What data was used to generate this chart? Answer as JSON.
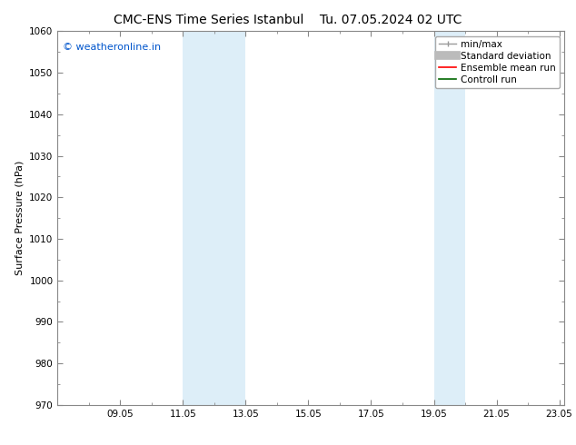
{
  "title_left": "CMC-ENS Time Series Istanbul",
  "title_right": "Tu. 07.05.2024 02 UTC",
  "ylabel": "Surface Pressure (hPa)",
  "xlim": [
    7.0,
    23.167
  ],
  "xtick_positions": [
    9.0,
    11.0,
    13.0,
    15.0,
    17.0,
    19.0,
    21.0,
    23.0
  ],
  "xtick_labels": [
    "09.05",
    "11.05",
    "13.05",
    "15.05",
    "17.05",
    "19.05",
    "21.05",
    "23.05"
  ],
  "ylim": [
    970,
    1060
  ],
  "ytick_step": 10,
  "shaded_regions": [
    {
      "x_start": 11.0,
      "x_end": 13.0,
      "color": "#ddeef8"
    },
    {
      "x_start": 19.0,
      "x_end": 20.0,
      "color": "#ddeef8"
    }
  ],
  "watermark_text": "© weatheronline.in",
  "watermark_color": "#0055cc",
  "background_color": "#ffffff",
  "spine_color": "#888888",
  "tick_color": "#333333",
  "font_size_title": 10,
  "font_size_axis": 8,
  "font_size_tick": 7.5,
  "font_size_legend": 7.5,
  "font_size_watermark": 8
}
